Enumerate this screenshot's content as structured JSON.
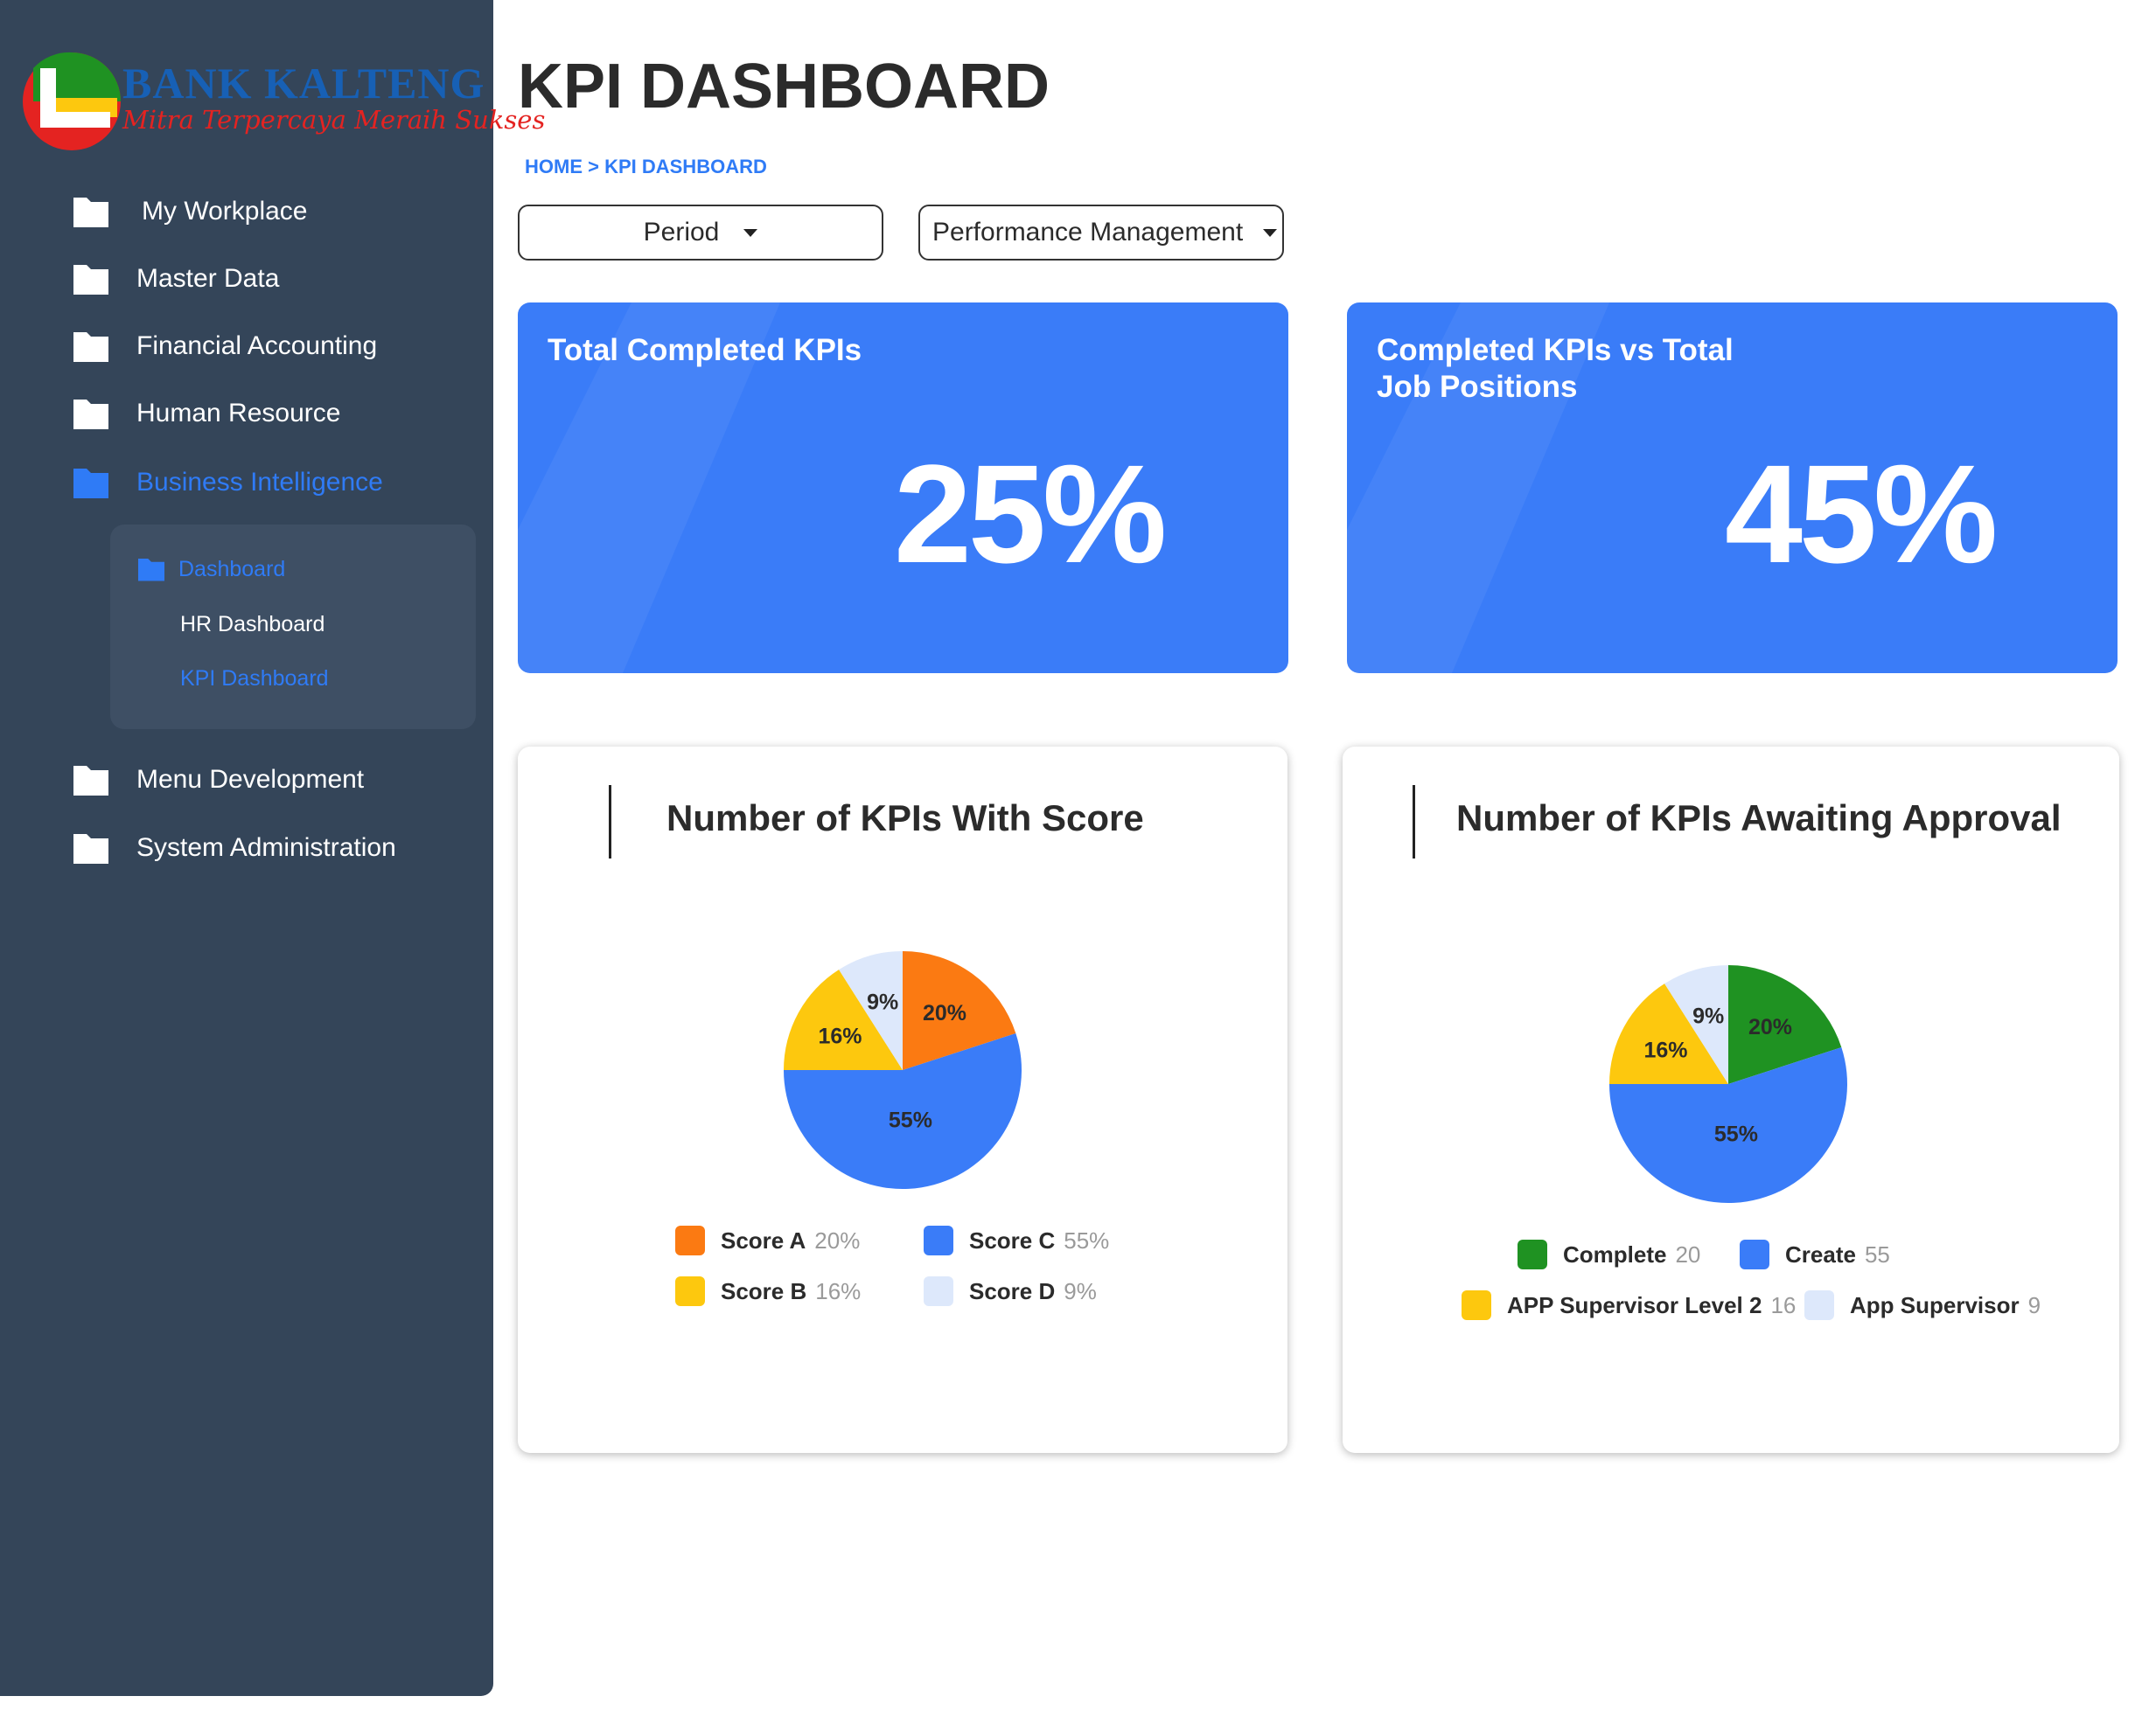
{
  "brand": {
    "name": "BANK KALTENG",
    "tagline": "Mitra Terpercaya Meraih Sukses"
  },
  "sidebar": {
    "items": [
      {
        "label": "My Workplace",
        "icon": "folder-icon"
      },
      {
        "label": "Master Data",
        "icon": "folder-icon"
      },
      {
        "label": "Financial Accounting",
        "icon": "folder-icon"
      },
      {
        "label": "Human Resource",
        "icon": "folder-icon"
      },
      {
        "label": "Business Intelligence",
        "icon": "folder-icon",
        "active": true
      },
      {
        "label": "Menu Development",
        "icon": "folder-icon"
      },
      {
        "label": "System Administration",
        "icon": "folder-icon"
      }
    ],
    "submenu": {
      "items": [
        {
          "label": "Dashboard",
          "icon": "folder-icon"
        },
        {
          "label": "HR Dashboard"
        },
        {
          "label": "KPI Dashboard"
        }
      ]
    }
  },
  "header": {
    "title": "KPI DASHBOARD",
    "breadcrumb": "HOME > KPI DASHBOARD"
  },
  "filters": {
    "period": "Period",
    "module": "Performance Management"
  },
  "kpi_cards": [
    {
      "title": "Total Completed KPIs",
      "value": "25%"
    },
    {
      "title": "Completed KPIs vs Total Job Positions",
      "value": "45%"
    }
  ],
  "colors": {
    "accent": "#2f7bf6",
    "sidebar": "#344559",
    "card_blue": "#3a7cf8"
  },
  "chart_data": [
    {
      "type": "pie",
      "title": "Number of KPIs With Score",
      "slices": [
        {
          "name": "Score A",
          "value": 20,
          "label": "20%",
          "legend_value": "20%",
          "color": "#fb7a12"
        },
        {
          "name": "Score C",
          "value": 55,
          "label": "55%",
          "legend_value": "55%",
          "color": "#3a7cf8"
        },
        {
          "name": "Score B",
          "value": 16,
          "label": "16%",
          "legend_value": "16%",
          "color": "#fdc80e"
        },
        {
          "name": "Score D",
          "value": 9,
          "label": "9%",
          "legend_value": "9%",
          "color": "#dde8fb"
        }
      ],
      "legend_order": [
        "Score A",
        "Score C",
        "Score B",
        "Score D"
      ]
    },
    {
      "type": "pie",
      "title": "Number of KPIs Awaiting Approval",
      "slices": [
        {
          "name": "Complete",
          "value": 20,
          "label": "20%",
          "legend_value": "20",
          "color": "#1f9222"
        },
        {
          "name": "Create",
          "value": 55,
          "label": "55%",
          "legend_value": "55",
          "color": "#3a7cf8"
        },
        {
          "name": "APP Supervisor Level 2",
          "value": 16,
          "label": "16%",
          "legend_value": "16",
          "color": "#fdc80e"
        },
        {
          "name": "App Supervisor",
          "value": 9,
          "label": "9%",
          "legend_value": "9",
          "color": "#dde8fb"
        }
      ],
      "legend_order": [
        "Complete",
        "Create",
        "APP Supervisor Level 2",
        "App Supervisor"
      ]
    }
  ]
}
